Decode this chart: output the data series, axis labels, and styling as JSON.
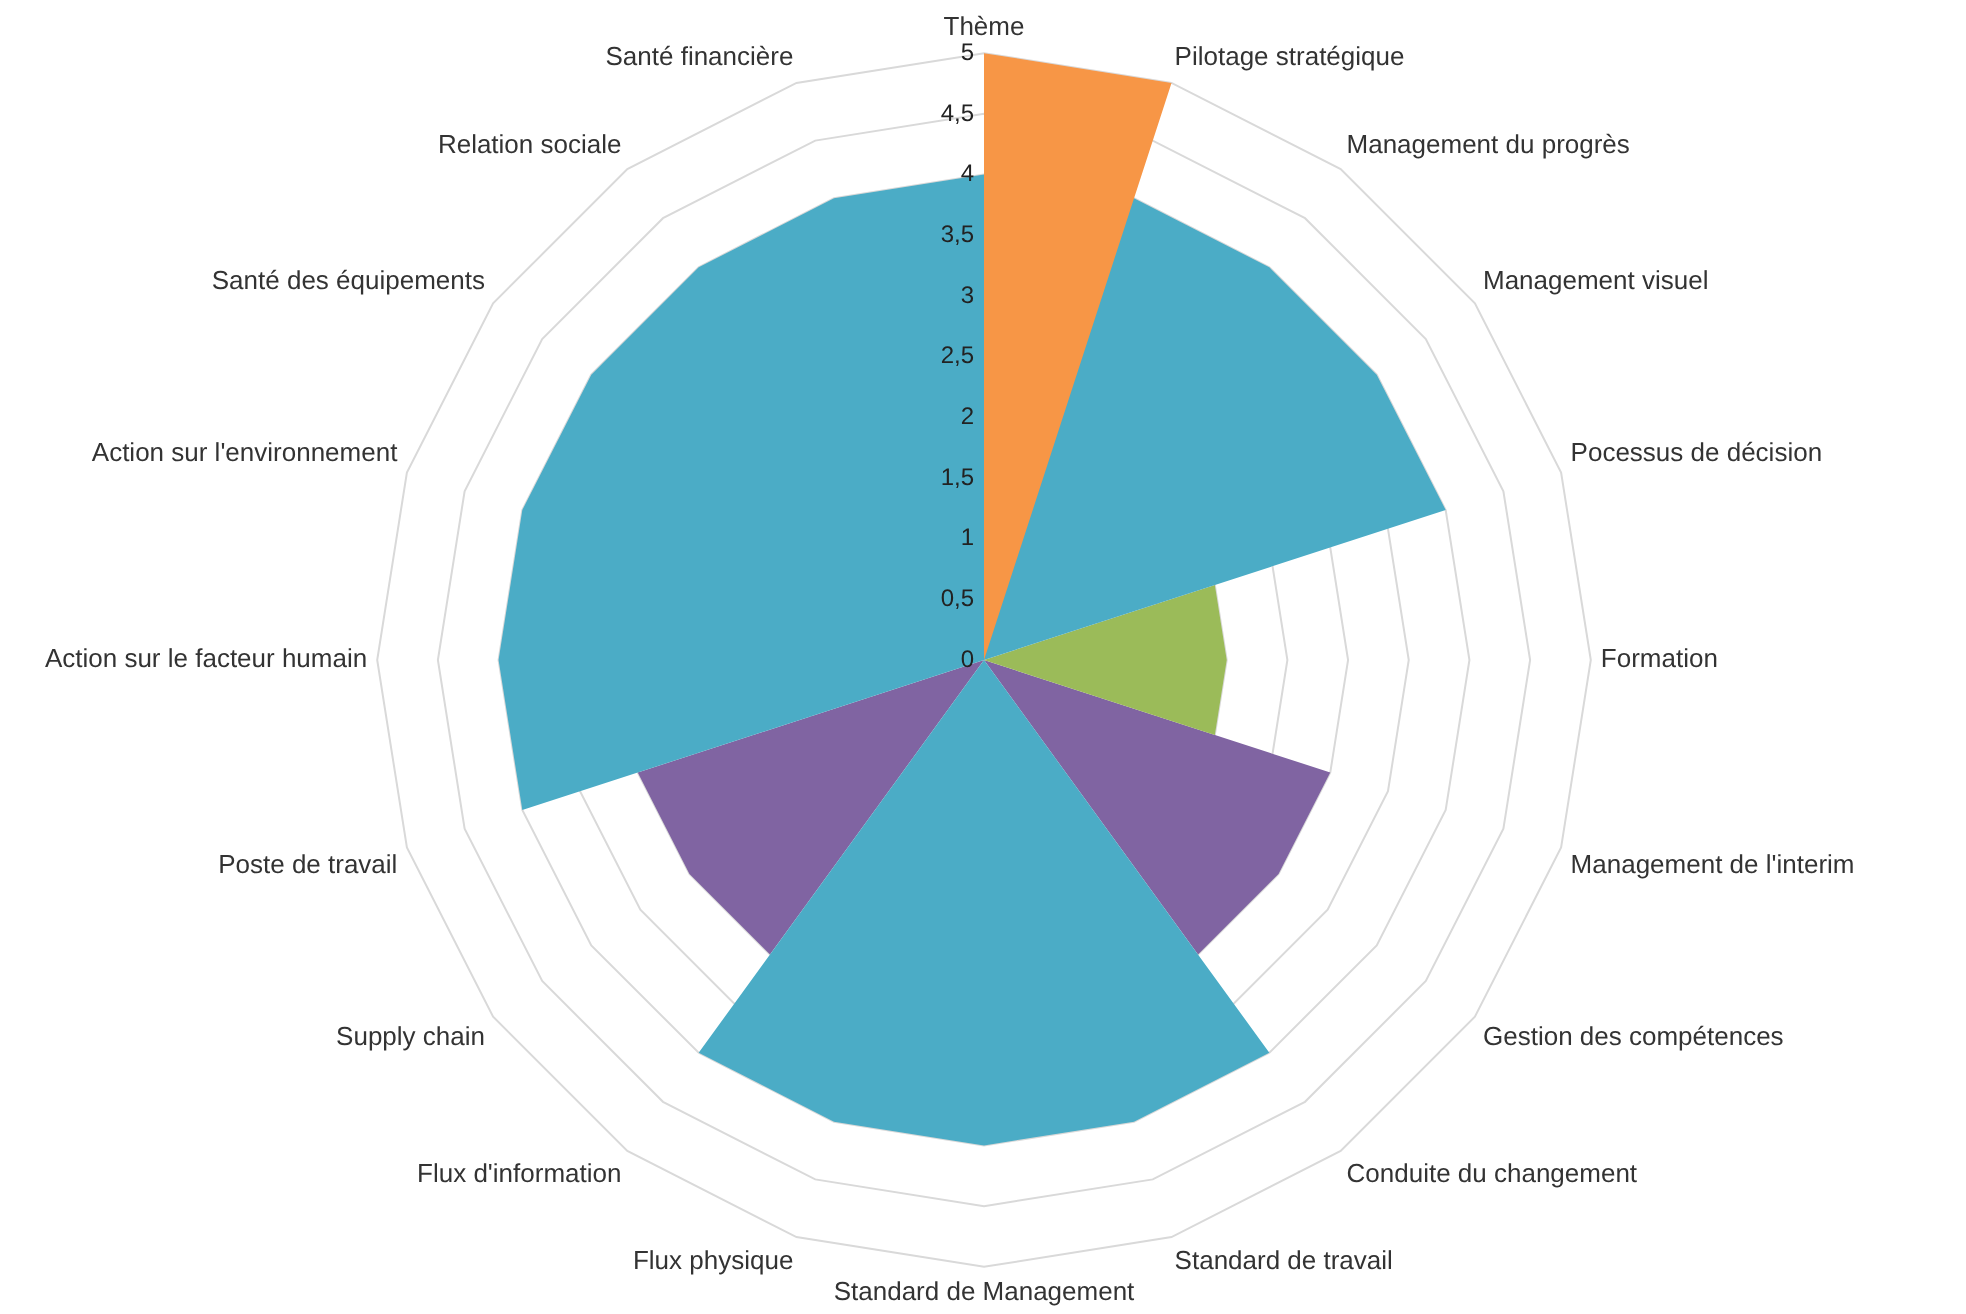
{
  "chart_data": {
    "type": "radar",
    "categories": [
      "Thème",
      "Pilotage stratégique",
      "Management du progrès",
      "Management visuel",
      "Pocessus de décision",
      "Formation",
      "Management de l'interim",
      "Gestion des compétences",
      "Conduite du changement",
      "Standard de travail",
      "Standard de Management",
      "Flux physique",
      "Flux d'information",
      "Supply chain",
      "Poste de travail",
      "Action sur le facteur humain",
      "Action sur l'environnement",
      "Santé des équipements",
      "Relation sociale",
      "Santé financière"
    ],
    "series": [
      {
        "color": "#8064a2",
        "values": [
          0,
          0,
          0,
          0,
          0,
          0,
          3,
          3,
          3,
          0,
          0,
          0,
          3,
          3,
          3,
          0,
          0,
          0,
          0,
          0
        ]
      },
      {
        "color": "#9bbb59",
        "values": [
          0,
          0,
          0,
          0,
          2,
          2,
          2,
          0,
          0,
          0,
          0,
          0,
          0,
          0,
          0,
          0,
          0,
          0,
          0,
          0
        ]
      },
      {
        "color": "#4bacc6",
        "values": [
          4,
          4,
          4,
          4,
          4,
          0,
          0,
          0,
          4,
          4,
          4,
          4,
          4,
          0,
          4,
          4,
          4,
          4,
          4,
          4
        ]
      },
      {
        "color": "#f79646",
        "values": [
          5,
          5,
          0,
          0,
          0,
          0,
          0,
          0,
          0,
          0,
          0,
          0,
          0,
          0,
          0,
          0,
          0,
          0,
          0,
          0
        ]
      }
    ],
    "ylim": [
      0,
      5
    ],
    "yticks": [
      0,
      {
        "value": 0.5,
        "label": "0,5"
      },
      1,
      {
        "value": 1.5,
        "label": "1,5"
      },
      2,
      {
        "value": 2.5,
        "label": "2,5"
      },
      3,
      {
        "value": 3.5,
        "label": "3,5"
      },
      4,
      {
        "value": 4.5,
        "label": "4,5"
      },
      5
    ],
    "grid": true,
    "legend": false
  }
}
